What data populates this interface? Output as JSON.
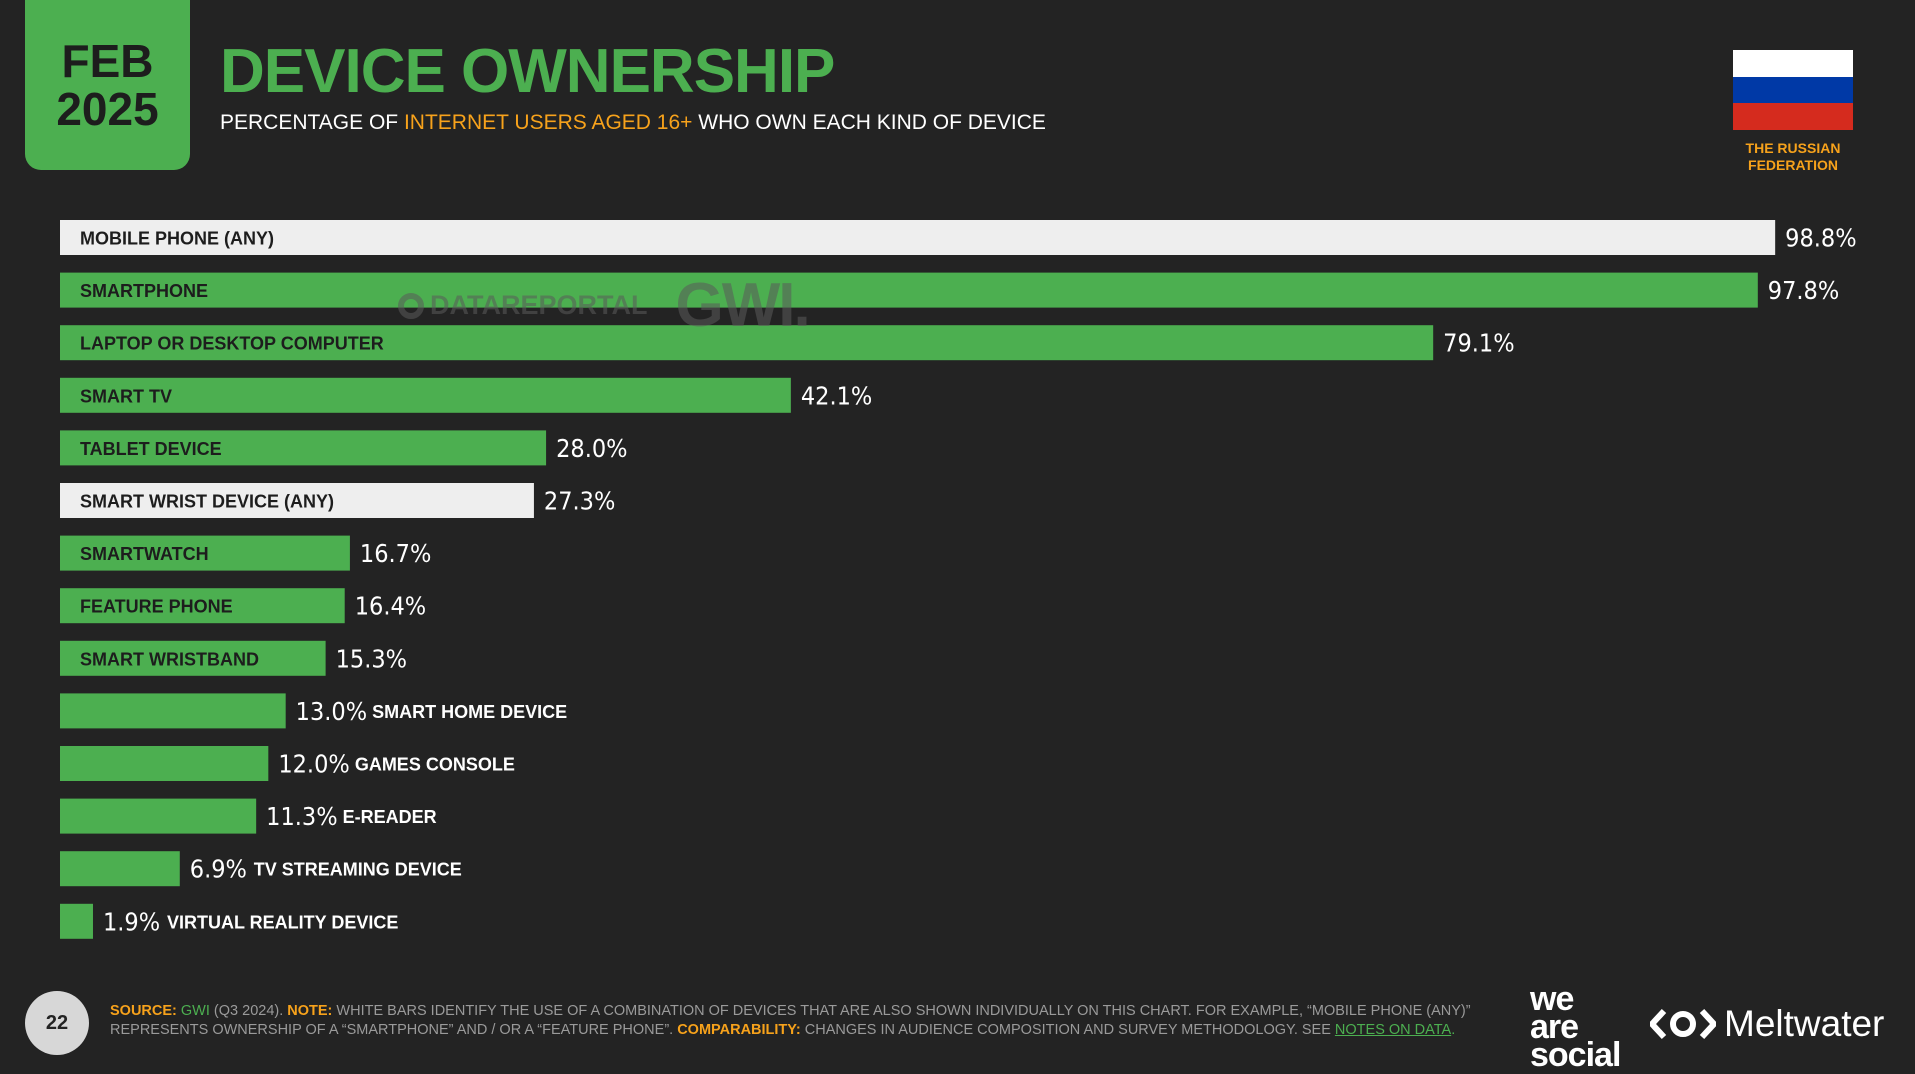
{
  "header": {
    "month": "FEB",
    "year": "2025",
    "title": "DEVICE OWNERSHIP",
    "subtitle_pre": "PERCENTAGE OF ",
    "subtitle_highlight": "INTERNET USERS AGED 16+",
    "subtitle_post": " WHO OWN EACH KIND OF DEVICE"
  },
  "country": {
    "line1": "THE RUSSIAN",
    "line2": "FEDERATION",
    "flag_colors": [
      "#ffffff",
      "#0039a6",
      "#d52b1e"
    ]
  },
  "watermark": {
    "left": "DATAREPORTAL",
    "right": "GWI."
  },
  "colors": {
    "green": "#4caf50",
    "white_bar": "#eeeeee",
    "accent": "#f7a21b",
    "background": "#232323"
  },
  "chart_data": {
    "type": "bar",
    "orientation": "horizontal",
    "title": "DEVICE OWNERSHIP",
    "xlim": [
      0,
      100
    ],
    "unit": "%",
    "categories": [
      "MOBILE PHONE (ANY)",
      "SMARTPHONE",
      "LAPTOP OR DESKTOP COMPUTER",
      "SMART TV",
      "TABLET DEVICE",
      "SMART WRIST DEVICE (ANY)",
      "SMARTWATCH",
      "FEATURE PHONE",
      "SMART WRISTBAND",
      "SMART HOME DEVICE",
      "GAMES CONSOLE",
      "E-READER",
      "TV STREAMING DEVICE",
      "VIRTUAL REALITY DEVICE"
    ],
    "values": [
      98.8,
      97.8,
      79.1,
      42.1,
      28.0,
      27.3,
      16.7,
      16.4,
      15.3,
      13.0,
      12.0,
      11.3,
      6.9,
      1.9
    ],
    "value_labels": [
      "98.8%",
      "97.8%",
      "79.1%",
      "42.1%",
      "28.0%",
      "27.3%",
      "16.7%",
      "16.4%",
      "15.3%",
      "13.0%",
      "12.0%",
      "11.3%",
      "6.9%",
      "1.9%"
    ],
    "combination_bar": [
      true,
      false,
      false,
      false,
      false,
      true,
      false,
      false,
      false,
      false,
      false,
      false,
      false,
      false
    ]
  },
  "footer": {
    "page_number": "22",
    "source_label": "SOURCE:",
    "source_gwi": "GWI",
    "source_rest": " (Q3 2024). ",
    "note_label": "NOTE:",
    "note_text": " WHITE BARS IDENTIFY THE USE OF A COMBINATION OF DEVICES THAT ARE ALSO SHOWN INDIVIDUALLY ON THIS CHART. FOR EXAMPLE, “MOBILE PHONE (ANY)” REPRESENTS OWNERSHIP OF A “SMARTPHONE” AND / OR A “FEATURE PHONE”. ",
    "comparability_label": "COMPARABILITY:",
    "comparability_text": " CHANGES IN AUDIENCE COMPOSITION AND SURVEY METHODOLOGY. SEE ",
    "notes_link": "NOTES ON DATA",
    "end": "."
  },
  "brands": {
    "we": "we",
    "are": "are",
    "social": "social",
    "meltwater": "Meltwater"
  }
}
